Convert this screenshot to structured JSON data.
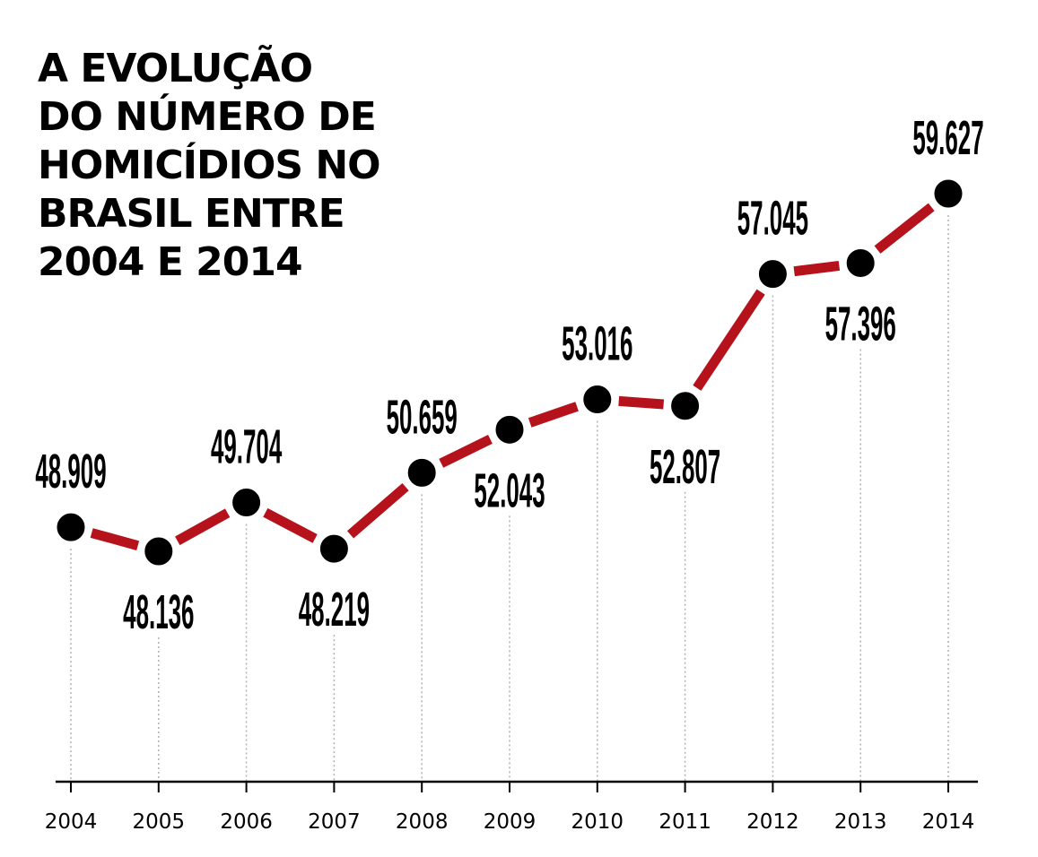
{
  "title_lines": [
    "A EVOLUÇÃO",
    "DO NÚMERO DE",
    "HOMICÍDIOS NO",
    "BRASIL ENTRE",
    "2004 E 2014"
  ],
  "colors": {
    "line": "#b5121b",
    "marker": "#000000",
    "guide": "#b0b0b0",
    "axis": "#000000"
  },
  "chart_data": {
    "type": "line",
    "title": "A EVOLUÇÃO DO NÚMERO DE HOMICÍDIOS NO BRASIL ENTRE 2004 E 2014",
    "categories": [
      "2004",
      "2005",
      "2006",
      "2007",
      "2008",
      "2009",
      "2010",
      "2011",
      "2012",
      "2013",
      "2014"
    ],
    "series": [
      {
        "values": [
          48909,
          48136,
          49704,
          48219,
          50659,
          52043,
          53016,
          52807,
          57045,
          57396,
          59627
        ],
        "labels": [
          "48.909",
          "48.136",
          "49.704",
          "48.219",
          "50.659",
          "52.043",
          "53.016",
          "52.807",
          "57.045",
          "57.396",
          "59.627"
        ],
        "label_positions": [
          "above",
          "below",
          "above",
          "below",
          "above",
          "below",
          "above",
          "below",
          "above",
          "below",
          "above"
        ]
      }
    ],
    "grid": false,
    "legend": "none"
  }
}
